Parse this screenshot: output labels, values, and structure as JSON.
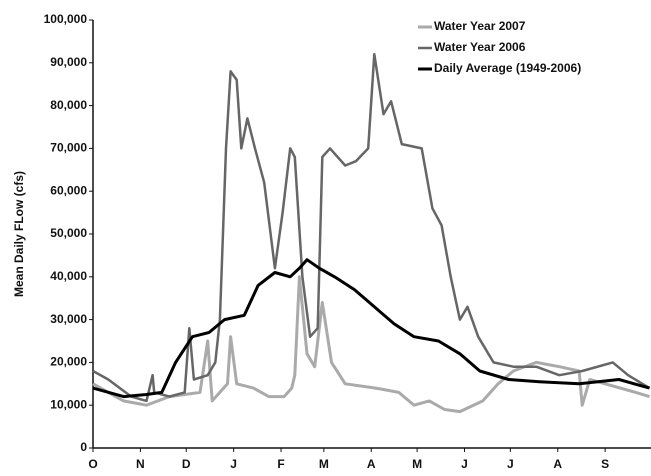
{
  "chart_data": {
    "type": "line",
    "y_label": "Mean Daily FLow (cfs)",
    "xlim": [
      0,
      365
    ],
    "xticks": [
      {
        "value": 0,
        "label": "O"
      },
      {
        "value": 31,
        "label": "N"
      },
      {
        "value": 61,
        "label": "D"
      },
      {
        "value": 92,
        "label": "J"
      },
      {
        "value": 123,
        "label": "F"
      },
      {
        "value": 151,
        "label": "M"
      },
      {
        "value": 182,
        "label": "A"
      },
      {
        "value": 212,
        "label": "M"
      },
      {
        "value": 243,
        "label": "J"
      },
      {
        "value": 273,
        "label": "J"
      },
      {
        "value": 304,
        "label": "A"
      },
      {
        "value": 335,
        "label": "S"
      }
    ],
    "ylim": [
      0,
      100000
    ],
    "yticks": [
      {
        "value": 0,
        "label": "0"
      },
      {
        "value": 10000,
        "label": "10,000"
      },
      {
        "value": 20000,
        "label": "20,000"
      },
      {
        "value": 30000,
        "label": "30,000"
      },
      {
        "value": 40000,
        "label": "40,000"
      },
      {
        "value": 50000,
        "label": "50,000"
      },
      {
        "value": 60000,
        "label": "60,000"
      },
      {
        "value": 70000,
        "label": "70,000"
      },
      {
        "value": 80000,
        "label": "80,000"
      },
      {
        "value": 90000,
        "label": "90,000"
      },
      {
        "value": 100000,
        "label": "100,000"
      }
    ],
    "legend": "upper right",
    "series": [
      {
        "name": "Water Year 2007",
        "color": "#aaaaaa",
        "width": 3,
        "x": [
          0,
          20,
          35,
          50,
          70,
          75,
          78,
          88,
          90,
          94,
          105,
          115,
          125,
          130,
          132,
          135,
          140,
          145,
          150,
          156,
          165,
          185,
          200,
          210,
          220,
          230,
          240,
          255,
          265,
          275,
          290,
          305,
          318,
          320,
          325,
          355,
          364
        ],
        "values": [
          15000,
          11000,
          10000,
          12000,
          13000,
          25000,
          11000,
          15000,
          26000,
          15000,
          14000,
          12000,
          12000,
          14000,
          17000,
          40000,
          22000,
          19000,
          34000,
          20000,
          15000,
          14000,
          13000,
          10000,
          11000,
          9000,
          8500,
          11000,
          15000,
          18000,
          20000,
          19000,
          18000,
          10000,
          16000,
          13000,
          12000
        ]
      },
      {
        "name": "Water Year 2006",
        "color": "#666666",
        "width": 2.5,
        "x": [
          0,
          10,
          25,
          35,
          39,
          40,
          50,
          60,
          63,
          66,
          75,
          80,
          83,
          87,
          90,
          94,
          97,
          101,
          106,
          112,
          119,
          124,
          129,
          132,
          137,
          142,
          147,
          150,
          155,
          165,
          172,
          180,
          184,
          190,
          195,
          202,
          215,
          222,
          228,
          234,
          240,
          245,
          252,
          262,
          275,
          290,
          305,
          320,
          340,
          350,
          364
        ],
        "values": [
          18000,
          16000,
          12000,
          11000,
          17000,
          13000,
          12000,
          13000,
          28000,
          16000,
          17000,
          20000,
          30000,
          70000,
          88000,
          86000,
          70000,
          77000,
          70000,
          62000,
          42000,
          55000,
          70000,
          68000,
          40000,
          26000,
          28000,
          68000,
          70000,
          66000,
          67000,
          70000,
          92000,
          78000,
          81000,
          71000,
          70000,
          56000,
          52000,
          40000,
          30000,
          33000,
          26000,
          20000,
          19000,
          19000,
          17000,
          18000,
          20000,
          17000,
          14000
        ]
      },
      {
        "name": "Daily Average (1949-2006)",
        "color": "#000000",
        "width": 3,
        "x": [
          0,
          20,
          35,
          45,
          54,
          65,
          76,
          86,
          99,
          108,
          119,
          129,
          135,
          140,
          148,
          158,
          171,
          184,
          197,
          210,
          226,
          240,
          253,
          272,
          292,
          318,
          344,
          364
        ],
        "values": [
          14000,
          12000,
          12500,
          13000,
          20000,
          26000,
          27000,
          30000,
          31000,
          38000,
          41000,
          40000,
          42000,
          44000,
          42000,
          40000,
          37000,
          33000,
          29000,
          26000,
          25000,
          22000,
          18000,
          16000,
          15500,
          15000,
          16000,
          14000
        ]
      }
    ]
  }
}
